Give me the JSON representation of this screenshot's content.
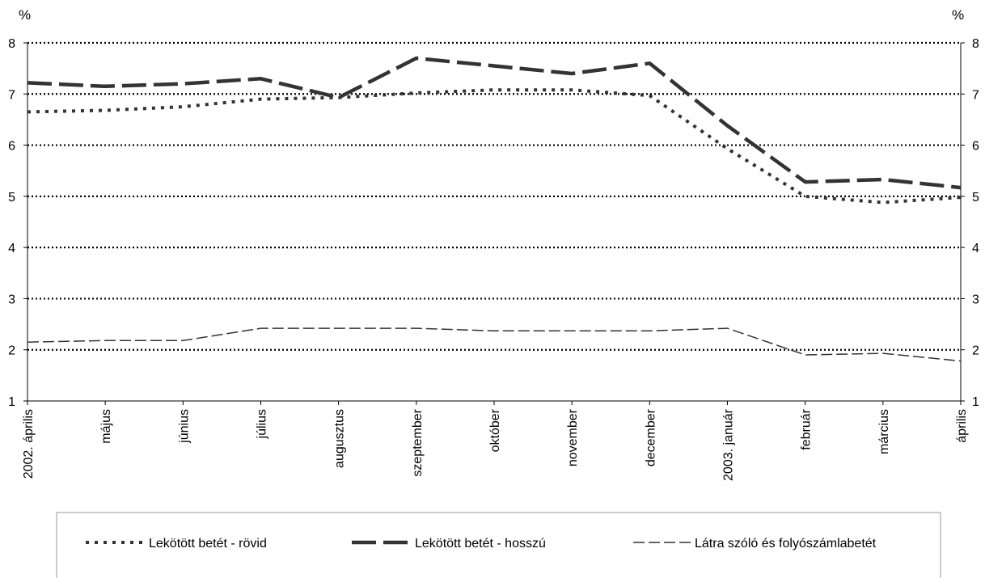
{
  "chart_data": {
    "type": "line",
    "y_unit_left": "%",
    "y_unit_right": "%",
    "ylim": [
      1,
      8
    ],
    "yticks": [
      1,
      2,
      3,
      4,
      5,
      6,
      7,
      8
    ],
    "grid": "horizontal dotted lines",
    "legend_position": "bottom",
    "categories": [
      "2002. április",
      "május",
      "június",
      "július",
      "augusztus",
      "szeptember",
      "október",
      "november",
      "december",
      "2003. január",
      "február",
      "március",
      "április"
    ],
    "series": [
      {
        "name": "Lekötött betét - rövid",
        "style": "dotted",
        "color": "#333333",
        "values": [
          6.65,
          6.68,
          6.75,
          6.9,
          6.93,
          7.02,
          7.08,
          7.08,
          6.97,
          5.93,
          5.0,
          4.88,
          4.98
        ]
      },
      {
        "name": "Lekötött betét - hosszú",
        "style": "long-dash",
        "color": "#333333",
        "values": [
          7.22,
          7.15,
          7.2,
          7.3,
          6.93,
          7.7,
          7.55,
          7.4,
          7.6,
          6.38,
          5.28,
          5.33,
          5.17
        ]
      },
      {
        "name": "Látra szóló és folyószámlabetét",
        "style": "short-dash",
        "color": "#333333",
        "values": [
          2.15,
          2.18,
          2.18,
          2.42,
          2.42,
          2.42,
          2.37,
          2.37,
          2.37,
          2.42,
          1.9,
          1.93,
          1.78
        ]
      }
    ]
  }
}
